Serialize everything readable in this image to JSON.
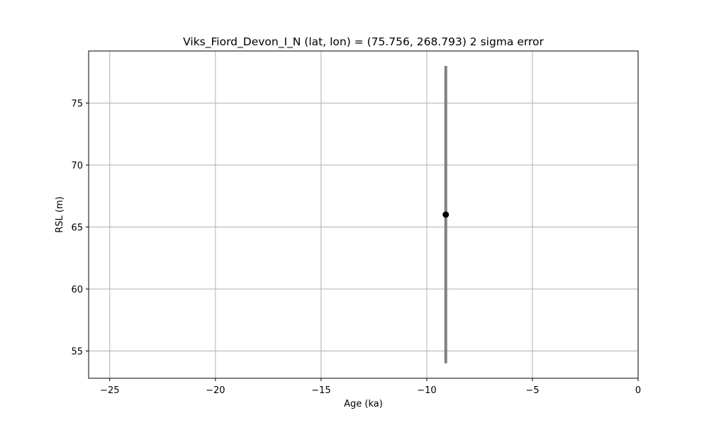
{
  "chart_data": {
    "type": "scatter",
    "title": "Viks_Fiord_Devon_I_N (lat, lon) = (75.756, 268.793)  2 sigma error",
    "xlabel": "Age (ka)",
    "ylabel": "RSL (m)",
    "xlim": [
      -26,
      0
    ],
    "ylim": [
      52.8,
      79.2
    ],
    "xticks": [
      -25,
      -20,
      -15,
      -10,
      -5,
      0
    ],
    "xtick_labels": [
      "−25",
      "−20",
      "−15",
      "−10",
      "−5",
      "0"
    ],
    "yticks": [
      55,
      60,
      65,
      70,
      75
    ],
    "ytick_labels": [
      "55",
      "60",
      "65",
      "70",
      "75"
    ],
    "grid": true,
    "points": [
      {
        "x": -9.1,
        "y": 66.0,
        "y_err_low": 54.0,
        "y_err_high": 78.0
      }
    ],
    "colors": {
      "point": "#000000",
      "errorbar": "#808080",
      "grid": "#b0b0b0"
    }
  }
}
